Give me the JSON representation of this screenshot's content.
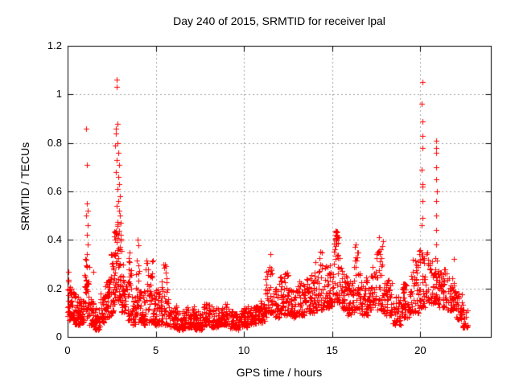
{
  "chart_data": {
    "type": "scatter",
    "title": "Day 240 of 2015, SRMTID for receiver lpal",
    "xlabel": "GPS time / hours",
    "ylabel": "SRMTID / TECUs",
    "xlim": [
      0,
      24
    ],
    "ylim": [
      0,
      1.2
    ],
    "xticks": {
      "values": [
        0,
        5,
        10,
        15,
        20
      ],
      "labels": [
        "0",
        "5",
        "10",
        "15",
        "20"
      ]
    },
    "yticks": {
      "values": [
        0,
        0.2,
        0.4,
        0.6,
        0.8,
        1,
        1.2
      ],
      "labels": [
        "0",
        "0.2",
        "0.4",
        "0.6",
        "0.8",
        "1",
        "1.2"
      ]
    },
    "grid": true,
    "grid_style": "dashed",
    "grid_color": "#a0a0a0",
    "axis_color": "#000000",
    "background_color": "#ffffff",
    "legend": "none",
    "marker": {
      "shape": "plus",
      "color": "#ff0000",
      "size": 7
    },
    "x_span_of_data": [
      0,
      22.7
    ],
    "series": [
      {
        "name": "SRMTID",
        "peaks": [
          [
            0.05,
            0.27
          ],
          [
            0.03,
            0.23
          ],
          [
            1.46,
            0.27
          ],
          [
            1.05,
            0.86
          ],
          [
            1.08,
            0.71
          ],
          [
            1.1,
            0.55
          ],
          [
            1.12,
            0.52
          ],
          [
            1.07,
            0.5
          ],
          [
            1.13,
            0.46
          ],
          [
            1.1,
            0.42
          ],
          [
            1.15,
            0.38
          ],
          [
            2.78,
            1.06
          ],
          [
            2.8,
            1.03
          ],
          [
            2.82,
            0.88
          ],
          [
            2.72,
            0.86
          ],
          [
            2.75,
            0.84
          ],
          [
            2.85,
            0.8
          ],
          [
            2.7,
            0.79
          ],
          [
            2.88,
            0.76
          ],
          [
            2.8,
            0.73
          ],
          [
            2.9,
            0.71
          ],
          [
            2.76,
            0.68
          ],
          [
            2.86,
            0.66
          ],
          [
            2.92,
            0.63
          ],
          [
            2.81,
            0.61
          ],
          [
            2.95,
            0.58
          ],
          [
            2.87,
            0.56
          ],
          [
            2.79,
            0.54
          ],
          [
            2.93,
            0.52
          ],
          [
            2.97,
            0.5
          ],
          [
            3.0,
            0.47
          ],
          [
            3.95,
            0.4
          ],
          [
            11.52,
            0.34
          ],
          [
            14.32,
            0.35
          ],
          [
            16.35,
            0.38
          ],
          [
            17.65,
            0.41
          ],
          [
            20.1,
            1.05
          ],
          [
            20.08,
            0.96
          ],
          [
            20.12,
            0.89
          ],
          [
            20.1,
            0.83
          ],
          [
            20.13,
            0.78
          ],
          [
            20.09,
            0.69
          ],
          [
            20.11,
            0.63
          ],
          [
            20.14,
            0.62
          ],
          [
            20.1,
            0.56
          ],
          [
            20.12,
            0.49
          ],
          [
            20.08,
            0.46
          ],
          [
            20.88,
            0.81
          ],
          [
            20.9,
            0.78
          ],
          [
            20.92,
            0.76
          ],
          [
            20.89,
            0.7
          ],
          [
            20.91,
            0.65
          ],
          [
            20.93,
            0.6
          ],
          [
            20.9,
            0.56
          ],
          [
            20.88,
            0.5
          ],
          [
            20.92,
            0.44
          ],
          [
            20.9,
            0.38
          ],
          [
            21.9,
            0.32
          ]
        ],
        "dense_bands": [
          [
            0.0,
            0.15,
            0.08,
            0.27,
            20
          ],
          [
            0.1,
            0.4,
            0.07,
            0.2,
            40
          ],
          [
            0.4,
            0.7,
            0.05,
            0.17,
            40
          ],
          [
            0.7,
            0.95,
            0.06,
            0.16,
            32
          ],
          [
            0.95,
            1.25,
            0.08,
            0.34,
            38
          ],
          [
            1.25,
            1.55,
            0.05,
            0.16,
            36
          ],
          [
            1.55,
            1.85,
            0.03,
            0.12,
            36
          ],
          [
            1.85,
            2.15,
            0.06,
            0.18,
            36
          ],
          [
            2.15,
            2.45,
            0.08,
            0.24,
            38
          ],
          [
            2.45,
            2.65,
            0.1,
            0.35,
            30
          ],
          [
            2.65,
            3.05,
            0.15,
            0.48,
            60
          ],
          [
            3.05,
            3.3,
            0.1,
            0.3,
            30
          ],
          [
            3.3,
            3.6,
            0.07,
            0.35,
            34
          ],
          [
            3.6,
            3.85,
            0.05,
            0.17,
            28
          ],
          [
            3.85,
            4.1,
            0.06,
            0.4,
            26
          ],
          [
            4.1,
            4.4,
            0.05,
            0.2,
            32
          ],
          [
            4.4,
            4.9,
            0.06,
            0.33,
            48
          ],
          [
            4.9,
            5.25,
            0.05,
            0.22,
            36
          ],
          [
            5.25,
            5.75,
            0.05,
            0.31,
            48
          ],
          [
            5.75,
            6.2,
            0.04,
            0.13,
            42
          ],
          [
            6.2,
            6.7,
            0.03,
            0.11,
            45
          ],
          [
            6.7,
            7.2,
            0.04,
            0.13,
            45
          ],
          [
            7.2,
            7.7,
            0.03,
            0.11,
            45
          ],
          [
            7.7,
            8.2,
            0.04,
            0.14,
            45
          ],
          [
            8.2,
            8.7,
            0.04,
            0.12,
            45
          ],
          [
            8.7,
            9.2,
            0.05,
            0.14,
            45
          ],
          [
            9.2,
            9.7,
            0.03,
            0.11,
            45
          ],
          [
            9.7,
            10.2,
            0.04,
            0.12,
            45
          ],
          [
            10.2,
            10.7,
            0.05,
            0.13,
            45
          ],
          [
            10.7,
            11.2,
            0.06,
            0.15,
            45
          ],
          [
            11.2,
            11.45,
            0.08,
            0.28,
            24
          ],
          [
            11.45,
            11.65,
            0.1,
            0.34,
            22
          ],
          [
            11.65,
            12.0,
            0.08,
            0.2,
            32
          ],
          [
            12.0,
            12.5,
            0.09,
            0.27,
            45
          ],
          [
            12.5,
            13.0,
            0.08,
            0.2,
            45
          ],
          [
            13.0,
            13.5,
            0.09,
            0.23,
            45
          ],
          [
            13.5,
            14.0,
            0.1,
            0.26,
            45
          ],
          [
            14.0,
            14.5,
            0.11,
            0.35,
            46
          ],
          [
            14.5,
            15.0,
            0.12,
            0.3,
            46
          ],
          [
            15.0,
            15.45,
            0.14,
            0.44,
            48
          ],
          [
            15.15,
            15.4,
            0.39,
            0.44,
            12,
            1.0
          ],
          [
            15.45,
            15.85,
            0.11,
            0.3,
            40
          ],
          [
            15.85,
            16.25,
            0.09,
            0.24,
            40
          ],
          [
            16.25,
            16.55,
            0.11,
            0.38,
            30
          ],
          [
            16.55,
            17.05,
            0.09,
            0.25,
            45
          ],
          [
            17.05,
            17.5,
            0.11,
            0.3,
            42
          ],
          [
            17.5,
            17.9,
            0.11,
            0.41,
            36
          ],
          [
            17.9,
            18.4,
            0.09,
            0.24,
            45
          ],
          [
            18.4,
            18.9,
            0.05,
            0.17,
            42
          ],
          [
            18.9,
            19.4,
            0.08,
            0.22,
            42
          ],
          [
            19.4,
            19.9,
            0.1,
            0.32,
            45
          ],
          [
            19.9,
            20.4,
            0.12,
            0.36,
            46
          ],
          [
            20.4,
            21.0,
            0.14,
            0.33,
            55
          ],
          [
            21.0,
            21.5,
            0.12,
            0.28,
            45
          ],
          [
            21.5,
            22.0,
            0.11,
            0.25,
            42
          ],
          [
            22.0,
            22.4,
            0.07,
            0.18,
            32
          ],
          [
            22.4,
            22.7,
            0.04,
            0.12,
            22
          ]
        ]
      }
    ]
  }
}
